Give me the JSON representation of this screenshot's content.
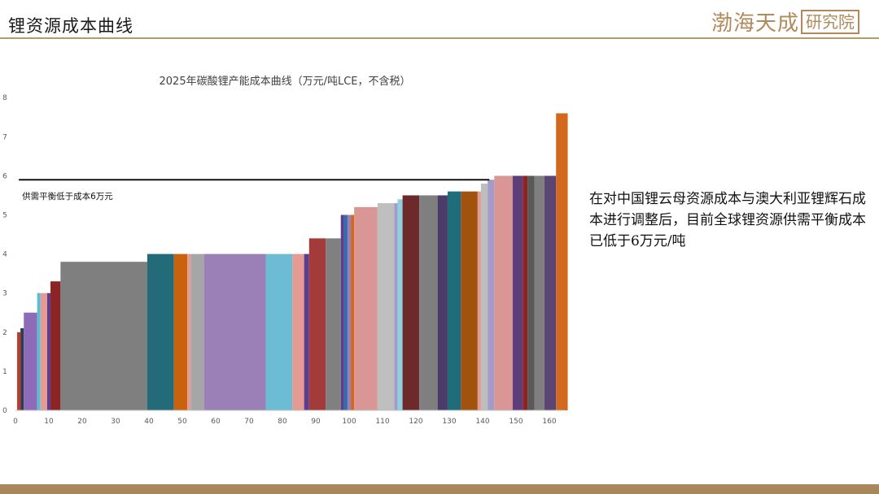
{
  "header": {
    "title": "锂资源成本曲线",
    "logo_text": "渤海天成研究院"
  },
  "note": "在对中国锂云母资源成本与澳大利亚锂辉石成本进行调整后，目前全球锂资源供需平衡成本已低于6万元/吨",
  "colors": {
    "header_rule": "#b59a6a",
    "footer": "#a8875a",
    "logo": "#b08a5a"
  },
  "chart_data": {
    "type": "bar",
    "subtype": "cost-curve",
    "title": "2025年碳酸锂产能成本曲线（万元/吨LCE，不含税）",
    "xlim": [
      0,
      163
    ],
    "ylim": [
      0,
      8
    ],
    "x_ticks": [
      0,
      10,
      20,
      30,
      40,
      50,
      60,
      70,
      80,
      90,
      100,
      110,
      120,
      130,
      140,
      150,
      160
    ],
    "y_ticks": [
      0,
      1,
      2,
      3,
      4,
      5,
      6,
      7,
      8
    ],
    "grid": false,
    "legend": "none",
    "reference_line": {
      "y": 5.9,
      "x_start": 1,
      "x_end": 142,
      "label": "供需平衡低于成本6万元"
    },
    "segments": [
      {
        "x0": 0.5,
        "x1": 1.5,
        "y": 2.0,
        "color": "#c0392b"
      },
      {
        "x0": 1.5,
        "x1": 2.5,
        "y": 2.1,
        "color": "#2c3e50"
      },
      {
        "x0": 2.5,
        "x1": 6.5,
        "y": 2.5,
        "color": "#8e6bb8"
      },
      {
        "x0": 6.5,
        "x1": 7.5,
        "y": 3.0,
        "color": "#5bbcd6"
      },
      {
        "x0": 7.5,
        "x1": 9.5,
        "y": 3.0,
        "color": "#e59a94"
      },
      {
        "x0": 9.5,
        "x1": 10.5,
        "y": 3.0,
        "color": "#5d3e8c"
      },
      {
        "x0": 10.5,
        "x1": 13.5,
        "y": 3.3,
        "color": "#8b2424"
      },
      {
        "x0": 13.5,
        "x1": 39.5,
        "y": 3.8,
        "color": "#7f7f7f"
      },
      {
        "x0": 39.5,
        "x1": 47.5,
        "y": 4.0,
        "color": "#236b79"
      },
      {
        "x0": 47.5,
        "x1": 51.5,
        "y": 4.0,
        "color": "#c8620f"
      },
      {
        "x0": 51.5,
        "x1": 52.5,
        "y": 4.0,
        "color": "#e59a94"
      },
      {
        "x0": 52.5,
        "x1": 56.5,
        "y": 4.0,
        "color": "#a6a6a6"
      },
      {
        "x0": 56.5,
        "x1": 75.0,
        "y": 4.0,
        "color": "#9b80b8"
      },
      {
        "x0": 75.0,
        "x1": 83.0,
        "y": 4.0,
        "color": "#6cbcd4"
      },
      {
        "x0": 83.0,
        "x1": 86.5,
        "y": 4.0,
        "color": "#e59a94"
      },
      {
        "x0": 86.5,
        "x1": 88.0,
        "y": 4.0,
        "color": "#5d3e8c"
      },
      {
        "x0": 88.0,
        "x1": 93.0,
        "y": 4.4,
        "color": "#a33b3b"
      },
      {
        "x0": 93.0,
        "x1": 97.5,
        "y": 4.4,
        "color": "#808080"
      },
      {
        "x0": 97.5,
        "x1": 98.5,
        "y": 5.0,
        "color": "#5d3e8c"
      },
      {
        "x0": 98.5,
        "x1": 99.5,
        "y": 5.0,
        "color": "#2f6fb0"
      },
      {
        "x0": 99.5,
        "x1": 100.5,
        "y": 5.0,
        "color": "#9b80b8"
      },
      {
        "x0": 100.5,
        "x1": 101.5,
        "y": 5.0,
        "color": "#d2691e"
      },
      {
        "x0": 101.5,
        "x1": 108.5,
        "y": 5.2,
        "color": "#d99694"
      },
      {
        "x0": 108.5,
        "x1": 113.5,
        "y": 5.3,
        "color": "#bfbfbf"
      },
      {
        "x0": 113.5,
        "x1": 114.5,
        "y": 5.3,
        "color": "#a49bc8"
      },
      {
        "x0": 114.5,
        "x1": 116.0,
        "y": 5.4,
        "color": "#8fcfe0"
      },
      {
        "x0": 116.0,
        "x1": 121.0,
        "y": 5.5,
        "color": "#6e2a2a"
      },
      {
        "x0": 121.0,
        "x1": 126.5,
        "y": 5.5,
        "color": "#7f7f7f"
      },
      {
        "x0": 126.5,
        "x1": 129.5,
        "y": 5.5,
        "color": "#4b3b6b"
      },
      {
        "x0": 129.5,
        "x1": 133.5,
        "y": 5.6,
        "color": "#1f6d7a"
      },
      {
        "x0": 133.5,
        "x1": 138.5,
        "y": 5.6,
        "color": "#a0520f"
      },
      {
        "x0": 138.5,
        "x1": 139.5,
        "y": 5.6,
        "color": "#e59a94"
      },
      {
        "x0": 139.5,
        "x1": 141.5,
        "y": 5.8,
        "color": "#bdbdbd"
      },
      {
        "x0": 141.5,
        "x1": 143.5,
        "y": 5.9,
        "color": "#a49bc8"
      },
      {
        "x0": 143.5,
        "x1": 149.0,
        "y": 6.0,
        "color": "#d99694"
      },
      {
        "x0": 149.0,
        "x1": 152.0,
        "y": 6.0,
        "color": "#5d3e7a"
      },
      {
        "x0": 152.0,
        "x1": 153.5,
        "y": 6.0,
        "color": "#8b2424"
      },
      {
        "x0": 153.5,
        "x1": 155.5,
        "y": 6.0,
        "color": "#595959"
      },
      {
        "x0": 155.5,
        "x1": 158.5,
        "y": 6.0,
        "color": "#7f7f7f"
      },
      {
        "x0": 158.5,
        "x1": 162.0,
        "y": 6.0,
        "color": "#5b4574"
      },
      {
        "x0": 162.0,
        "x1": 165.5,
        "y": 7.6,
        "color": "#d2691e"
      }
    ]
  }
}
